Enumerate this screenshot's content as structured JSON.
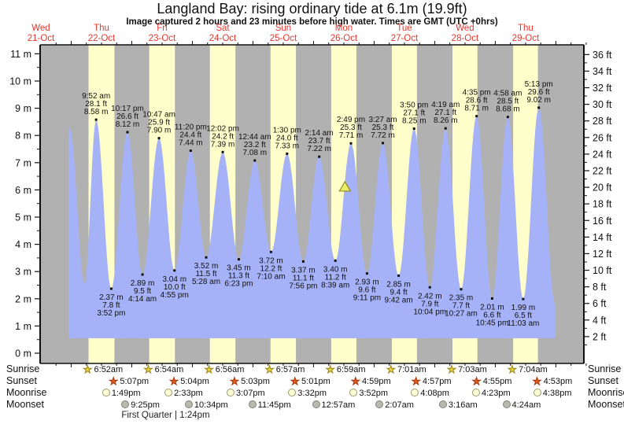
{
  "title": "Langland Bay: rising  ordinary tide at 6.1m (19.9ft)",
  "subtitle": "Image captured 2 hours and 23 minutes before high water. Times are GMT (UTC +0hrs)",
  "colors": {
    "night_stripe": "#b1b1b1",
    "day_stripe": "#ffffcb",
    "tide_fill": "#a5b2f7",
    "day_label_red": "#e53831",
    "axis_black": "#111111",
    "sunrise_star": "#e9d242",
    "sunset_star": "#e05a21",
    "moonrise_circle": "#ffffd8",
    "moonset_circle": "#b9b9ae",
    "marker_yellow": "#ecec66"
  },
  "chart_data": {
    "type": "area",
    "title": "Langland Bay: rising  ordinary tide at 6.1m (19.9ft)",
    "subtitle": "Image captured 2 hours and 23 minutes before high water. Times are GMT (UTC +0hrs)",
    "x_axis": {
      "days": [
        {
          "name": "Wed",
          "date": "21-Oct"
        },
        {
          "name": "Thu",
          "date": "22-Oct"
        },
        {
          "name": "Fri",
          "date": "23-Oct"
        },
        {
          "name": "Sat",
          "date": "24-Oct"
        },
        {
          "name": "Sun",
          "date": "25-Oct"
        },
        {
          "name": "Mon",
          "date": "26-Oct"
        },
        {
          "name": "Tue",
          "date": "27-Oct"
        },
        {
          "name": "Wed",
          "date": "28-Oct"
        },
        {
          "name": "Thu",
          "date": "29-Oct"
        }
      ]
    },
    "y_axis_left": {
      "unit": "m",
      "min": 0,
      "max": 11,
      "tick_step": 1
    },
    "y_axis_right": {
      "unit": "ft",
      "min": 2,
      "max": 36,
      "tick_step": 2
    },
    "tide_events": [
      {
        "date": "22-Oct",
        "time": "9:52 am",
        "type": "high",
        "m": "8.58",
        "ft": "28.1"
      },
      {
        "date": "22-Oct",
        "time": "3:52 pm",
        "type": "low",
        "m": "2.37",
        "ft": "7.8"
      },
      {
        "date": "22-Oct",
        "time": "10:17 pm",
        "type": "high",
        "m": "8.12",
        "ft": "26.6"
      },
      {
        "date": "23-Oct",
        "time": "4:14 am",
        "type": "low",
        "m": "2.89",
        "ft": "9.5"
      },
      {
        "date": "23-Oct",
        "time": "10:47 am",
        "type": "high",
        "m": "7.90",
        "ft": "25.9"
      },
      {
        "date": "23-Oct",
        "time": "4:55 pm",
        "type": "low",
        "m": "3.04",
        "ft": "10.0"
      },
      {
        "date": "23-Oct",
        "time": "11:20 pm",
        "type": "high",
        "m": "7.44",
        "ft": "24.4"
      },
      {
        "date": "24-Oct",
        "time": "5:28 am",
        "type": "low",
        "m": "3.52",
        "ft": "11.5"
      },
      {
        "date": "24-Oct",
        "time": "12:02 pm",
        "type": "high",
        "m": "7.39",
        "ft": "24.2"
      },
      {
        "date": "24-Oct",
        "time": "6:23 pm",
        "type": "low",
        "m": "3.45",
        "ft": "11.3"
      },
      {
        "date": "25-Oct",
        "time": "12:44 am",
        "type": "high",
        "m": "7.08",
        "ft": "23.2"
      },
      {
        "date": "25-Oct",
        "time": "7:10 am",
        "type": "low",
        "m": "3.72",
        "ft": "12.2"
      },
      {
        "date": "25-Oct",
        "time": "1:30 pm",
        "type": "high",
        "m": "7.33",
        "ft": "24.0"
      },
      {
        "date": "25-Oct",
        "time": "7:56 pm",
        "type": "low",
        "m": "3.37",
        "ft": "11.1"
      },
      {
        "date": "26-Oct",
        "time": "2:14 am",
        "type": "high",
        "m": "7.22",
        "ft": "23.7"
      },
      {
        "date": "26-Oct",
        "time": "8:39 am",
        "type": "low",
        "m": "3.40",
        "ft": "11.2"
      },
      {
        "date": "26-Oct",
        "time": "2:49 pm",
        "type": "high",
        "m": "7.71",
        "ft": "25.3"
      },
      {
        "date": "26-Oct",
        "time": "9:11 pm",
        "type": "low",
        "m": "2.93",
        "ft": "9.6"
      },
      {
        "date": "27-Oct",
        "time": "3:27 am",
        "type": "high",
        "m": "7.72",
        "ft": "25.3"
      },
      {
        "date": "27-Oct",
        "time": "9:42 am",
        "type": "low",
        "m": "2.85",
        "ft": "9.4"
      },
      {
        "date": "27-Oct",
        "time": "3:50 pm",
        "type": "high",
        "m": "8.25",
        "ft": "27.1"
      },
      {
        "date": "27-Oct",
        "time": "10:04 pm",
        "type": "low",
        "m": "2.42",
        "ft": "7.9"
      },
      {
        "date": "28-Oct",
        "time": "4:19 am",
        "type": "high",
        "m": "8.26",
        "ft": "27.1"
      },
      {
        "date": "28-Oct",
        "time": "10:27 am",
        "type": "low",
        "m": "2.35",
        "ft": "7.7"
      },
      {
        "date": "28-Oct",
        "time": "4:35 pm",
        "type": "high",
        "m": "8.71",
        "ft": "28.6"
      },
      {
        "date": "28-Oct",
        "time": "10:45 pm",
        "type": "low",
        "m": "2.01",
        "ft": "6.6"
      },
      {
        "date": "29-Oct",
        "time": "4:58 am",
        "type": "high",
        "m": "8.68",
        "ft": "28.5"
      },
      {
        "date": "29-Oct",
        "time": "11:03 am",
        "type": "low",
        "m": "1.99",
        "ft": "6.5"
      },
      {
        "date": "29-Oct",
        "time": "5:13 pm",
        "type": "high",
        "m": "9.02",
        "ft": "29.6"
      }
    ],
    "current_level": {
      "height_m": 6.1,
      "height_ft": 19.9,
      "rising_to_high_date": "26-Oct",
      "rising_to_high_time": "2:49 pm",
      "lead_minutes": 143
    }
  },
  "sun_moon": {
    "rows": [
      {
        "key": "sunrise",
        "label": "Sunrise",
        "events": [
          {
            "date": "22-Oct",
            "time": "6:52am"
          },
          {
            "date": "23-Oct",
            "time": "6:54am"
          },
          {
            "date": "24-Oct",
            "time": "6:56am"
          },
          {
            "date": "25-Oct",
            "time": "6:57am"
          },
          {
            "date": "26-Oct",
            "time": "6:59am"
          },
          {
            "date": "27-Oct",
            "time": "7:01am"
          },
          {
            "date": "28-Oct",
            "time": "7:03am"
          },
          {
            "date": "29-Oct",
            "time": "7:04am"
          }
        ]
      },
      {
        "key": "sunset",
        "label": "Sunset",
        "events": [
          {
            "date": "22-Oct",
            "time": "5:07pm"
          },
          {
            "date": "23-Oct",
            "time": "5:04pm"
          },
          {
            "date": "24-Oct",
            "time": "5:03pm"
          },
          {
            "date": "25-Oct",
            "time": "5:01pm"
          },
          {
            "date": "26-Oct",
            "time": "4:59pm"
          },
          {
            "date": "27-Oct",
            "time": "4:57pm"
          },
          {
            "date": "28-Oct",
            "time": "4:55pm"
          },
          {
            "date": "29-Oct",
            "time": "4:53pm"
          }
        ]
      },
      {
        "key": "moonrise",
        "label": "Moonrise",
        "events": [
          {
            "date": "22-Oct",
            "time": "1:49pm"
          },
          {
            "date": "23-Oct",
            "time": "2:33pm"
          },
          {
            "date": "24-Oct",
            "time": "3:07pm"
          },
          {
            "date": "25-Oct",
            "time": "3:32pm"
          },
          {
            "date": "26-Oct",
            "time": "3:52pm"
          },
          {
            "date": "27-Oct",
            "time": "4:08pm"
          },
          {
            "date": "28-Oct",
            "time": "4:23pm"
          },
          {
            "date": "29-Oct",
            "time": "4:38pm"
          }
        ]
      },
      {
        "key": "moonset",
        "label": "Moonset",
        "events": [
          {
            "date": "22-Oct",
            "time": "9:25pm"
          },
          {
            "date": "23-Oct",
            "time": "10:34pm"
          },
          {
            "date": "24-Oct",
            "time": "11:45pm"
          },
          {
            "date": "26-Oct",
            "time": "12:57am"
          },
          {
            "date": "27-Oct",
            "time": "2:07am"
          },
          {
            "date": "28-Oct",
            "time": "3:16am"
          },
          {
            "date": "29-Oct",
            "time": "4:24am"
          }
        ]
      }
    ],
    "moon_phase": {
      "label": "First Quarter",
      "time": "1:24pm",
      "anchor_date": "23-Oct"
    }
  }
}
